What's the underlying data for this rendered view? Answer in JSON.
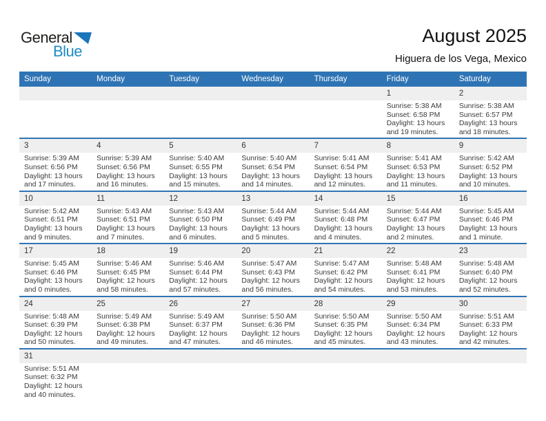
{
  "logo": {
    "general": "General",
    "blue": "Blue"
  },
  "header": {
    "title": "August 2025",
    "subtitle": "Higuera de los Vega, Mexico"
  },
  "colors": {
    "header_bar_blue": "#2e74b5",
    "week_separator_blue": "#2e74b5",
    "day_band_gray": "#efefef",
    "logo_text_blue": "#1e8bc3",
    "logo_triangle_blue": "#1b75bb"
  },
  "weekdays": [
    "Sunday",
    "Monday",
    "Tuesday",
    "Wednesday",
    "Thursday",
    "Friday",
    "Saturday"
  ],
  "weeks": [
    [
      null,
      null,
      null,
      null,
      null,
      {
        "date": "1",
        "lines": [
          "Sunrise: 5:38 AM",
          "Sunset: 6:58 PM",
          "Daylight: 13 hours",
          "and 19 minutes."
        ]
      },
      {
        "date": "2",
        "lines": [
          "Sunrise: 5:38 AM",
          "Sunset: 6:57 PM",
          "Daylight: 13 hours",
          "and 18 minutes."
        ]
      }
    ],
    [
      {
        "date": "3",
        "lines": [
          "Sunrise: 5:39 AM",
          "Sunset: 6:56 PM",
          "Daylight: 13 hours",
          "and 17 minutes."
        ]
      },
      {
        "date": "4",
        "lines": [
          "Sunrise: 5:39 AM",
          "Sunset: 6:56 PM",
          "Daylight: 13 hours",
          "and 16 minutes."
        ]
      },
      {
        "date": "5",
        "lines": [
          "Sunrise: 5:40 AM",
          "Sunset: 6:55 PM",
          "Daylight: 13 hours",
          "and 15 minutes."
        ]
      },
      {
        "date": "6",
        "lines": [
          "Sunrise: 5:40 AM",
          "Sunset: 6:54 PM",
          "Daylight: 13 hours",
          "and 14 minutes."
        ]
      },
      {
        "date": "7",
        "lines": [
          "Sunrise: 5:41 AM",
          "Sunset: 6:54 PM",
          "Daylight: 13 hours",
          "and 12 minutes."
        ]
      },
      {
        "date": "8",
        "lines": [
          "Sunrise: 5:41 AM",
          "Sunset: 6:53 PM",
          "Daylight: 13 hours",
          "and 11 minutes."
        ]
      },
      {
        "date": "9",
        "lines": [
          "Sunrise: 5:42 AM",
          "Sunset: 6:52 PM",
          "Daylight: 13 hours",
          "and 10 minutes."
        ]
      }
    ],
    [
      {
        "date": "10",
        "lines": [
          "Sunrise: 5:42 AM",
          "Sunset: 6:51 PM",
          "Daylight: 13 hours",
          "and 9 minutes."
        ]
      },
      {
        "date": "11",
        "lines": [
          "Sunrise: 5:43 AM",
          "Sunset: 6:51 PM",
          "Daylight: 13 hours",
          "and 7 minutes."
        ]
      },
      {
        "date": "12",
        "lines": [
          "Sunrise: 5:43 AM",
          "Sunset: 6:50 PM",
          "Daylight: 13 hours",
          "and 6 minutes."
        ]
      },
      {
        "date": "13",
        "lines": [
          "Sunrise: 5:44 AM",
          "Sunset: 6:49 PM",
          "Daylight: 13 hours",
          "and 5 minutes."
        ]
      },
      {
        "date": "14",
        "lines": [
          "Sunrise: 5:44 AM",
          "Sunset: 6:48 PM",
          "Daylight: 13 hours",
          "and 4 minutes."
        ]
      },
      {
        "date": "15",
        "lines": [
          "Sunrise: 5:44 AM",
          "Sunset: 6:47 PM",
          "Daylight: 13 hours",
          "and 2 minutes."
        ]
      },
      {
        "date": "16",
        "lines": [
          "Sunrise: 5:45 AM",
          "Sunset: 6:46 PM",
          "Daylight: 13 hours",
          "and 1 minute."
        ]
      }
    ],
    [
      {
        "date": "17",
        "lines": [
          "Sunrise: 5:45 AM",
          "Sunset: 6:46 PM",
          "Daylight: 13 hours",
          "and 0 minutes."
        ]
      },
      {
        "date": "18",
        "lines": [
          "Sunrise: 5:46 AM",
          "Sunset: 6:45 PM",
          "Daylight: 12 hours",
          "and 58 minutes."
        ]
      },
      {
        "date": "19",
        "lines": [
          "Sunrise: 5:46 AM",
          "Sunset: 6:44 PM",
          "Daylight: 12 hours",
          "and 57 minutes."
        ]
      },
      {
        "date": "20",
        "lines": [
          "Sunrise: 5:47 AM",
          "Sunset: 6:43 PM",
          "Daylight: 12 hours",
          "and 56 minutes."
        ]
      },
      {
        "date": "21",
        "lines": [
          "Sunrise: 5:47 AM",
          "Sunset: 6:42 PM",
          "Daylight: 12 hours",
          "and 54 minutes."
        ]
      },
      {
        "date": "22",
        "lines": [
          "Sunrise: 5:48 AM",
          "Sunset: 6:41 PM",
          "Daylight: 12 hours",
          "and 53 minutes."
        ]
      },
      {
        "date": "23",
        "lines": [
          "Sunrise: 5:48 AM",
          "Sunset: 6:40 PM",
          "Daylight: 12 hours",
          "and 52 minutes."
        ]
      }
    ],
    [
      {
        "date": "24",
        "lines": [
          "Sunrise: 5:48 AM",
          "Sunset: 6:39 PM",
          "Daylight: 12 hours",
          "and 50 minutes."
        ]
      },
      {
        "date": "25",
        "lines": [
          "Sunrise: 5:49 AM",
          "Sunset: 6:38 PM",
          "Daylight: 12 hours",
          "and 49 minutes."
        ]
      },
      {
        "date": "26",
        "lines": [
          "Sunrise: 5:49 AM",
          "Sunset: 6:37 PM",
          "Daylight: 12 hours",
          "and 47 minutes."
        ]
      },
      {
        "date": "27",
        "lines": [
          "Sunrise: 5:50 AM",
          "Sunset: 6:36 PM",
          "Daylight: 12 hours",
          "and 46 minutes."
        ]
      },
      {
        "date": "28",
        "lines": [
          "Sunrise: 5:50 AM",
          "Sunset: 6:35 PM",
          "Daylight: 12 hours",
          "and 45 minutes."
        ]
      },
      {
        "date": "29",
        "lines": [
          "Sunrise: 5:50 AM",
          "Sunset: 6:34 PM",
          "Daylight: 12 hours",
          "and 43 minutes."
        ]
      },
      {
        "date": "30",
        "lines": [
          "Sunrise: 5:51 AM",
          "Sunset: 6:33 PM",
          "Daylight: 12 hours",
          "and 42 minutes."
        ]
      }
    ],
    [
      {
        "date": "31",
        "lines": [
          "Sunrise: 5:51 AM",
          "Sunset: 6:32 PM",
          "Daylight: 12 hours",
          "and 40 minutes."
        ]
      },
      null,
      null,
      null,
      null,
      null,
      null
    ]
  ]
}
